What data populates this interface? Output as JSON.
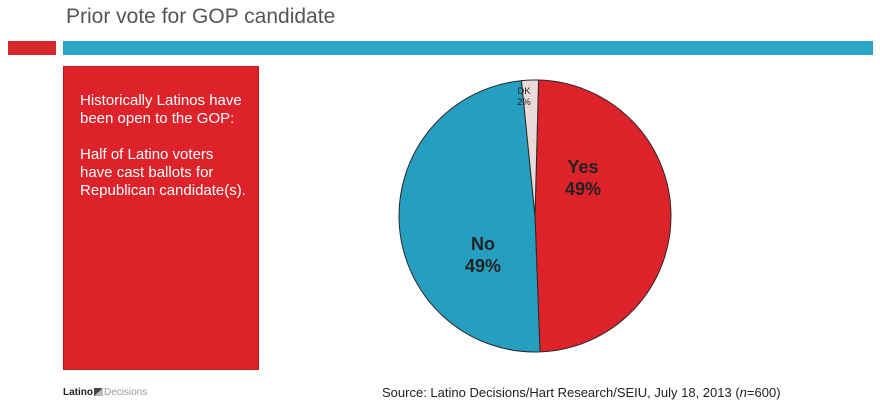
{
  "slide": {
    "title": "Prior vote for GOP candidate",
    "sidebar": {
      "paragraph1": "Historically Latinos have been open to the GOP:",
      "paragraph2": "Half of Latino voters have cast ballots for Republican candidate(s)."
    },
    "footer": {
      "logo_bold": "Latino",
      "logo_light": "Decisions",
      "source_prefix": "Source: Latino Decisions/Hart Research/SEIU, July 18, 2013 (",
      "source_n": "n",
      "source_suffix": "=600)"
    },
    "colors": {
      "accent_red": "#d8262d",
      "accent_blue": "#2aa6c4"
    }
  },
  "chart_data": {
    "type": "pie",
    "title": "",
    "slices": [
      {
        "label": "Yes",
        "value": 49,
        "display": "49%",
        "color": "#de2229"
      },
      {
        "label": "No",
        "value": 49,
        "display": "49%",
        "color": "#259ec0"
      },
      {
        "label": "DK",
        "value": 2,
        "display": "2%",
        "color": "#eadada"
      }
    ]
  }
}
